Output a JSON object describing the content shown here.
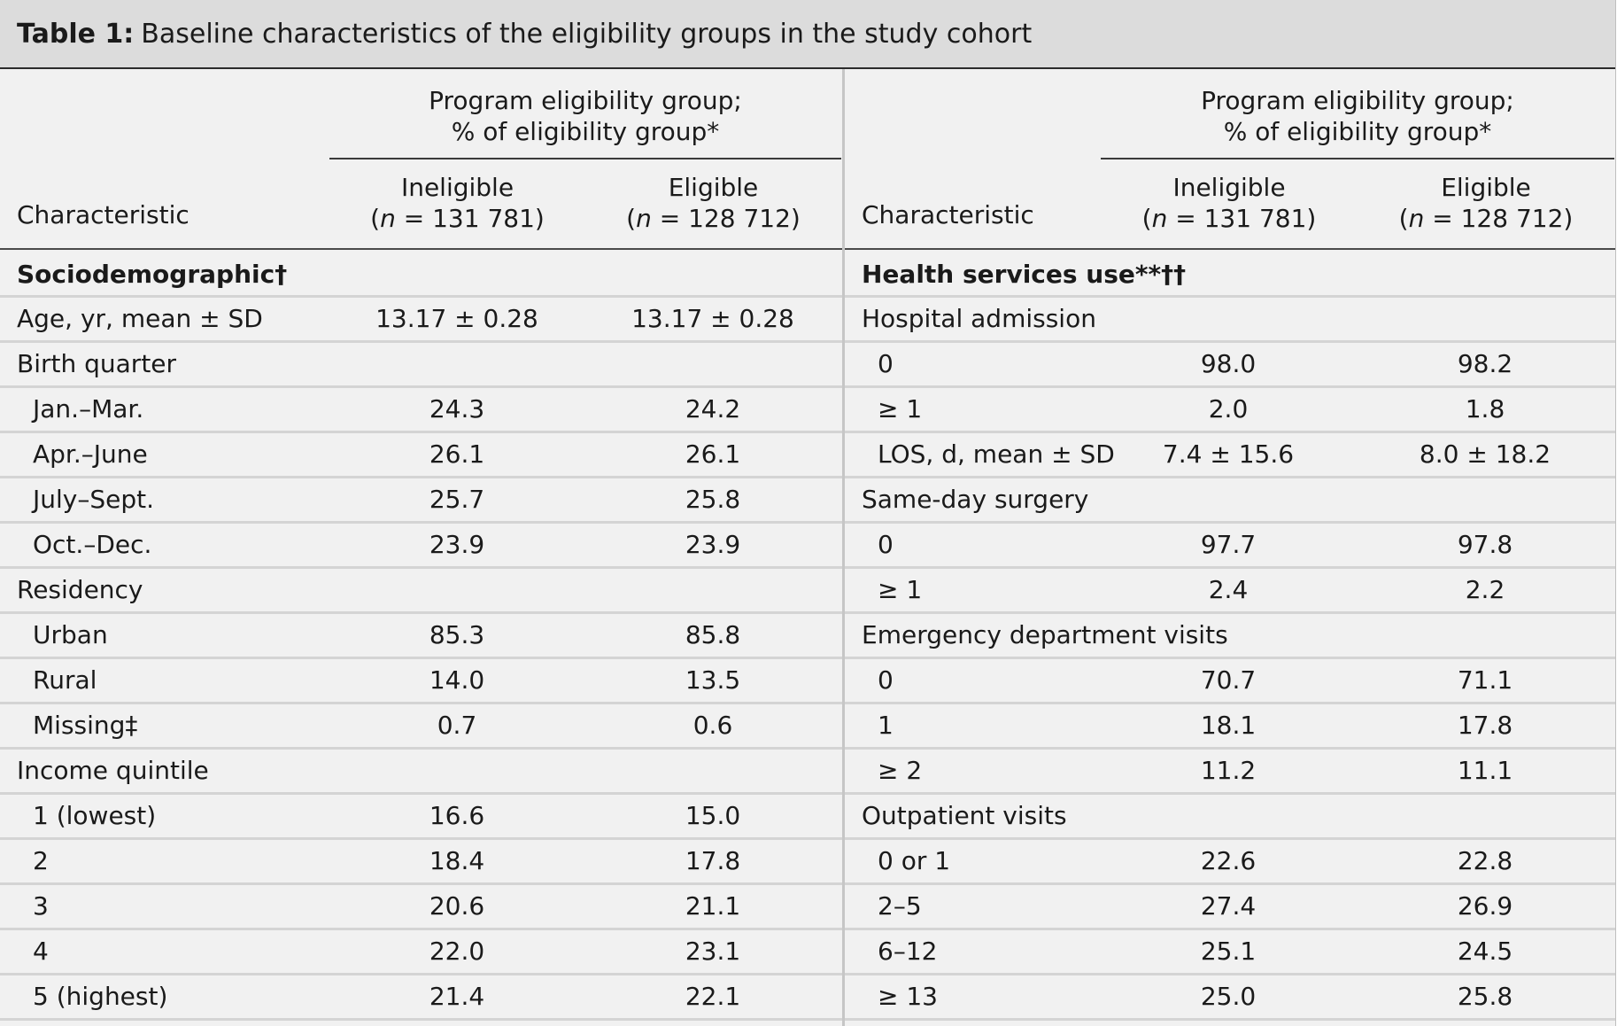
{
  "table": {
    "caption_label": "Table 1:",
    "caption_text": "Baseline characteristics of the eligibility groups in the study cohort",
    "group_header_line1": "Program eligibility group;",
    "group_header_line2": "% of eligibility group*",
    "char_header": "Characteristic",
    "col1_label": "Ineligible",
    "col1_n": "(n = 131 781)",
    "col2_label": "Eligible",
    "col2_n": "(n = 128 712)",
    "left_rows": [
      {
        "label": "Sociodemographic†",
        "v1": "",
        "v2": "",
        "bold": true,
        "indent": false
      },
      {
        "label": "Age, yr, mean ± SD",
        "v1": "13.17 ± 0.28",
        "v2": "13.17 ± 0.28",
        "bold": false,
        "indent": false
      },
      {
        "label": "Birth quarter",
        "v1": "",
        "v2": "",
        "bold": false,
        "indent": false
      },
      {
        "label": "Jan.–Mar.",
        "v1": "24.3",
        "v2": "24.2",
        "bold": false,
        "indent": true
      },
      {
        "label": "Apr.–June",
        "v1": "26.1",
        "v2": "26.1",
        "bold": false,
        "indent": true
      },
      {
        "label": "July–Sept.",
        "v1": "25.7",
        "v2": "25.8",
        "bold": false,
        "indent": true
      },
      {
        "label": "Oct.–Dec.",
        "v1": "23.9",
        "v2": "23.9",
        "bold": false,
        "indent": true
      },
      {
        "label": "Residency",
        "v1": "",
        "v2": "",
        "bold": false,
        "indent": false
      },
      {
        "label": "Urban",
        "v1": "85.3",
        "v2": "85.8",
        "bold": false,
        "indent": true
      },
      {
        "label": "Rural",
        "v1": "14.0",
        "v2": "13.5",
        "bold": false,
        "indent": true
      },
      {
        "label": "Missing‡",
        "v1": "0.7",
        "v2": "0.6",
        "bold": false,
        "indent": true
      },
      {
        "label": "Income quintile",
        "v1": "",
        "v2": "",
        "bold": false,
        "indent": false
      },
      {
        "label": "1 (lowest)",
        "v1": "16.6",
        "v2": "15.0",
        "bold": false,
        "indent": true
      },
      {
        "label": "2",
        "v1": "18.4",
        "v2": "17.8",
        "bold": false,
        "indent": true
      },
      {
        "label": "3",
        "v1": "20.6",
        "v2": "21.1",
        "bold": false,
        "indent": true
      },
      {
        "label": "4",
        "v1": "22.0",
        "v2": "23.1",
        "bold": false,
        "indent": true
      },
      {
        "label": "5 (highest)",
        "v1": "21.4",
        "v2": "22.1",
        "bold": false,
        "indent": true
      }
    ],
    "right_rows": [
      {
        "label": "Health services use**††",
        "v1": "",
        "v2": "",
        "bold": true,
        "indent": false
      },
      {
        "label": "Hospital admission",
        "v1": "",
        "v2": "",
        "bold": false,
        "indent": false
      },
      {
        "label": "0",
        "v1": "98.0",
        "v2": "98.2",
        "bold": false,
        "indent": true
      },
      {
        "label": "≥ 1",
        "v1": "2.0",
        "v2": "1.8",
        "bold": false,
        "indent": true
      },
      {
        "label": "LOS, d, mean ± SD",
        "v1": "7.4 ± 15.6",
        "v2": "8.0 ± 18.2",
        "bold": false,
        "indent": true
      },
      {
        "label": "Same-day surgery",
        "v1": "",
        "v2": "",
        "bold": false,
        "indent": false
      },
      {
        "label": "0",
        "v1": "97.7",
        "v2": "97.8",
        "bold": false,
        "indent": true
      },
      {
        "label": "≥ 1",
        "v1": "2.4",
        "v2": "2.2",
        "bold": false,
        "indent": true
      },
      {
        "label": "Emergency department visits",
        "v1": "",
        "v2": "",
        "bold": false,
        "indent": false
      },
      {
        "label": "0",
        "v1": "70.7",
        "v2": "71.1",
        "bold": false,
        "indent": true
      },
      {
        "label": "1",
        "v1": "18.1",
        "v2": "17.8",
        "bold": false,
        "indent": true
      },
      {
        "label": "≥ 2",
        "v1": "11.2",
        "v2": "11.1",
        "bold": false,
        "indent": true
      },
      {
        "label": "Outpatient visits",
        "v1": "",
        "v2": "",
        "bold": false,
        "indent": false
      },
      {
        "label": "0 or 1",
        "v1": "22.6",
        "v2": "22.8",
        "bold": false,
        "indent": true
      },
      {
        "label": "2–5",
        "v1": "27.4",
        "v2": "26.9",
        "bold": false,
        "indent": true
      },
      {
        "label": "6–12",
        "v1": "25.1",
        "v2": "24.5",
        "bold": false,
        "indent": true
      },
      {
        "label": "≥ 13",
        "v1": "25.0",
        "v2": "25.8",
        "bold": false,
        "indent": true
      }
    ]
  }
}
